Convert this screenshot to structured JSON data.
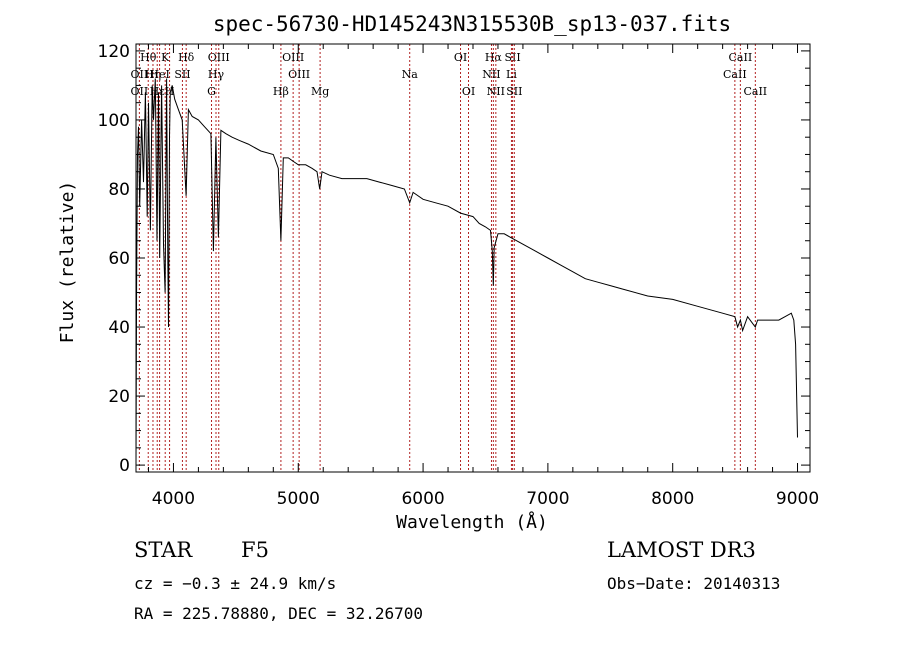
{
  "chart_data": {
    "type": "line",
    "title": "spec-56730-HD145243N315530B_sp13-037.fits",
    "xlabel": "Wavelength (Å)",
    "ylabel": "Flux (relative)",
    "xlim": [
      3700,
      9100
    ],
    "ylim": [
      -2,
      122
    ],
    "xticks": [
      4000,
      5000,
      6000,
      7000,
      8000,
      9000
    ],
    "yticks": [
      0,
      20,
      40,
      60,
      80,
      100,
      120
    ],
    "series": [
      {
        "name": "spectrum",
        "x": [
          3700,
          3705,
          3712,
          3720,
          3730,
          3745,
          3760,
          3775,
          3790,
          3800,
          3815,
          3830,
          3840,
          3855,
          3868,
          3880,
          3890,
          3905,
          3920,
          3933,
          3945,
          3955,
          3960,
          3968,
          3975,
          3990,
          4010,
          4040,
          4070,
          4101,
          4120,
          4150,
          4200,
          4250,
          4300,
          4320,
          4340,
          4360,
          4380,
          4420,
          4470,
          4530,
          4600,
          4700,
          4800,
          4840,
          4861,
          4880,
          4920,
          4960,
          5000,
          5060,
          5110,
          5150,
          5172,
          5190,
          5250,
          5350,
          5450,
          5550,
          5650,
          5750,
          5850,
          5893,
          5920,
          6000,
          6100,
          6200,
          6300,
          6400,
          6450,
          6500,
          6540,
          6555,
          6563,
          6570,
          6600,
          6650,
          6700,
          6800,
          6900,
          7000,
          7100,
          7200,
          7300,
          7400,
          7500,
          7600,
          7800,
          8000,
          8200,
          8400,
          8498,
          8520,
          8542,
          8560,
          8600,
          8662,
          8680,
          8750,
          8850,
          8900,
          8950,
          8970,
          8985,
          9000
        ],
        "values": [
          0,
          52,
          90,
          98,
          75,
          100,
          82,
          108,
          72,
          105,
          68,
          110,
          100,
          112,
          65,
          108,
          60,
          110,
          64,
          50,
          112,
          60,
          40,
          95,
          108,
          110,
          106,
          103,
          100,
          78,
          103,
          101,
          100,
          98,
          96,
          62,
          95,
          66,
          97,
          96,
          95,
          94,
          93,
          91,
          90,
          86,
          65,
          89,
          89,
          88,
          87,
          87,
          86,
          85,
          80,
          85,
          84,
          83,
          83,
          83,
          82,
          81,
          80,
          76,
          79,
          77,
          76,
          75,
          73,
          72,
          70,
          69,
          68,
          62,
          52,
          63,
          67,
          67,
          66,
          64,
          62,
          60,
          58,
          56,
          54,
          53,
          52,
          51,
          49,
          48,
          46,
          44,
          43,
          40,
          42,
          39,
          43,
          40,
          42,
          42,
          42,
          43,
          44,
          42,
          35,
          8
        ]
      }
    ],
    "line_markers": [
      {
        "label": "Hθ",
        "x": 3798,
        "row": 0
      },
      {
        "label": "OII",
        "x": 3727,
        "row": 1
      },
      {
        "label": "OII",
        "x": 3727,
        "row": 2
      },
      {
        "label": "Hη",
        "x": 3836,
        "row": 1
      },
      {
        "label": "Hε",
        "x": 3870,
        "row": 2
      },
      {
        "label": "K",
        "x": 3934,
        "row": 0
      },
      {
        "label": "HeI",
        "x": 3889,
        "row": 1
      },
      {
        "label": "H",
        "x": 3969,
        "row": 2
      },
      {
        "label": "Hδ",
        "x": 4102,
        "row": 0
      },
      {
        "label": "SII",
        "x": 4072,
        "row": 1
      },
      {
        "label": "OIII",
        "x": 4363,
        "row": 0
      },
      {
        "label": "Hγ",
        "x": 4341,
        "row": 1
      },
      {
        "label": "G",
        "x": 4305,
        "row": 2
      },
      {
        "label": "OIII",
        "x": 4959,
        "row": 0
      },
      {
        "label": "OIII",
        "x": 5007,
        "row": 1
      },
      {
        "label": "Hβ",
        "x": 4861,
        "row": 2
      },
      {
        "label": "Mg",
        "x": 5175,
        "row": 2
      },
      {
        "label": "Na",
        "x": 5893,
        "row": 1
      },
      {
        "label": "OI",
        "x": 6300,
        "row": 0
      },
      {
        "label": "OI",
        "x": 6364,
        "row": 2
      },
      {
        "label": "Hα",
        "x": 6563,
        "row": 0
      },
      {
        "label": "SII",
        "x": 6717,
        "row": 0
      },
      {
        "label": "NII",
        "x": 6548,
        "row": 1
      },
      {
        "label": "Li",
        "x": 6708,
        "row": 1
      },
      {
        "label": "NII",
        "x": 6583,
        "row": 2
      },
      {
        "label": "SII",
        "x": 6731,
        "row": 2
      },
      {
        "label": "CaII",
        "x": 8542,
        "row": 0
      },
      {
        "label": "CaII",
        "x": 8498,
        "row": 1
      },
      {
        "label": "CaII",
        "x": 8662,
        "row": 2
      }
    ],
    "colors": {
      "spectrum": "#000000",
      "marker": "#b22222",
      "axis": "#000000"
    }
  },
  "info": {
    "class_label": "STAR",
    "subclass": "F5",
    "survey": "LAMOST DR3",
    "cz_text": "cz = −0.3 ± 24.9 km/s",
    "obs_date": "Obs−Date: 20140313",
    "coords": "RA = 225.78880, DEC =  32.26700"
  }
}
